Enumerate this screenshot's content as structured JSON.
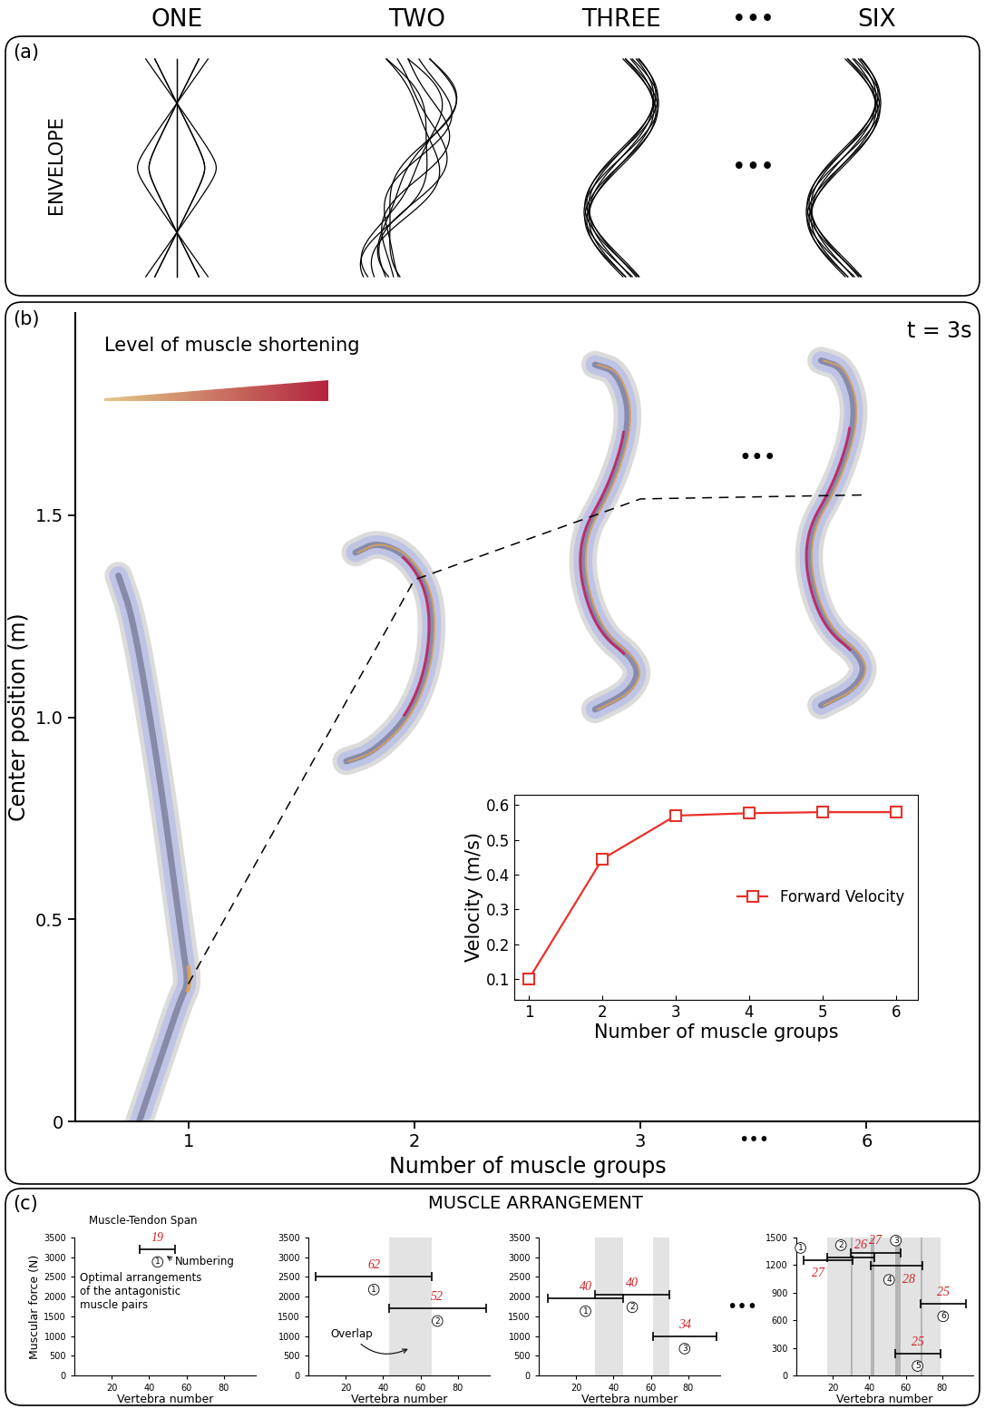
{
  "header": {
    "columns": [
      "ONE",
      "TWO",
      "THREE",
      "•••",
      "SIX"
    ]
  },
  "panels": {
    "a": {
      "label": "(a)",
      "title": "ENVELOPE"
    },
    "b": {
      "label": "(b)",
      "time": "t = 3s",
      "legend_bar": "Level of muscle shortening"
    },
    "c": {
      "label": "(c)",
      "title": "MUSCLE ARRANGEMENT",
      "ellipsis": "•••"
    }
  },
  "chart_data": [
    {
      "type": "line",
      "x_label": "Number of muscle groups",
      "y_label": "Center position (m)",
      "categories": [
        "1",
        "2",
        "3",
        "6"
      ],
      "values": [
        0.34,
        1.34,
        1.54,
        1.55
      ],
      "color": "#000000",
      "line_style": "dashed",
      "axis_break": "•••",
      "ylim": [
        0,
        2.0
      ],
      "yticks": [
        0,
        0.5,
        {
          "value": 1.0,
          "label": "1.0"
        },
        1.5
      ]
    },
    {
      "type": "line",
      "x_label": "Number of muscle groups",
      "y_label": "Velocity (m/s)",
      "x": [
        1,
        2,
        3,
        4,
        5,
        6
      ],
      "series": [
        {
          "name": "Forward Velocity",
          "color": "#e8312a",
          "marker": "square",
          "values": [
            0.1,
            0.445,
            0.57,
            0.577,
            0.58,
            0.58
          ]
        }
      ],
      "xlim": [
        0.8,
        6.3
      ],
      "xticks": [
        1,
        2,
        3,
        4,
        5,
        6
      ],
      "ylim": [
        0.04,
        0.63
      ],
      "yticks": [
        0.1,
        0.2,
        0.3,
        0.4,
        0.5,
        0.6
      ],
      "legend": "right"
    },
    {
      "type": "span",
      "x_label": "Vertebra number",
      "y_label": "Muscular force (N)",
      "xlim": [
        0,
        97
      ],
      "xticks": [
        20,
        40,
        60,
        80
      ],
      "ylim": [
        0,
        3500
      ],
      "yticks": [
        0,
        500,
        1000,
        1500,
        2000,
        2500,
        3000,
        3500
      ],
      "spans": [
        {
          "number": 1,
          "start": 35,
          "end": 54,
          "force": 3200,
          "span_label": 19
        }
      ],
      "annotations": [
        "Muscle-Tendon Span",
        "Numbering",
        "Optimal arrangements of the antagonistic muscle pairs"
      ]
    },
    {
      "type": "span",
      "x_label": "Vertebra number",
      "xlim": [
        0,
        97
      ],
      "xticks": [
        20,
        40,
        60,
        80
      ],
      "ylim": [
        0,
        3500
      ],
      "yticks": [
        0,
        500,
        1000,
        1500,
        2000,
        2500,
        3000,
        3500
      ],
      "spans": [
        {
          "number": 1,
          "start": 4,
          "end": 66,
          "force": 2500,
          "span_label": 62
        },
        {
          "number": 2,
          "start": 43,
          "end": 95,
          "force": 1700,
          "span_label": 52
        }
      ],
      "annotations": [
        "Overlap"
      ]
    },
    {
      "type": "span",
      "x_label": "Vertebra number",
      "xlim": [
        0,
        97
      ],
      "xticks": [
        20,
        40,
        60,
        80
      ],
      "ylim": [
        0,
        3500
      ],
      "yticks": [
        0,
        500,
        1000,
        1500,
        2000,
        2500,
        3000,
        3500
      ],
      "spans": [
        {
          "number": 1,
          "start": 5,
          "end": 45,
          "force": 1950,
          "span_label": 40
        },
        {
          "number": 2,
          "start": 30,
          "end": 70,
          "force": 2050,
          "span_label": 40
        },
        {
          "number": 3,
          "start": 61,
          "end": 95,
          "force": 1000,
          "span_label": 34
        }
      ]
    },
    {
      "type": "span",
      "x_label": "Vertebra number",
      "xlim": [
        0,
        97
      ],
      "xticks": [
        20,
        40,
        60,
        80
      ],
      "ylim": [
        0,
        1500
      ],
      "yticks": [
        0,
        300,
        600,
        900,
        1200,
        1500
      ],
      "spans": [
        {
          "number": 1,
          "start": 4,
          "end": 31,
          "force": 1250,
          "span_label": 27
        },
        {
          "number": 2,
          "start": 17,
          "end": 43,
          "force": 1280,
          "span_label": 26
        },
        {
          "number": 3,
          "start": 30,
          "end": 57,
          "force": 1330,
          "span_label": 27
        },
        {
          "number": 4,
          "start": 41,
          "end": 69,
          "force": 1190,
          "span_label": 28
        },
        {
          "number": 5,
          "start": 54,
          "end": 79,
          "force": 240,
          "span_label": 25
        },
        {
          "number": 6,
          "start": 68,
          "end": 93,
          "force": 780,
          "span_label": 25
        }
      ]
    }
  ]
}
